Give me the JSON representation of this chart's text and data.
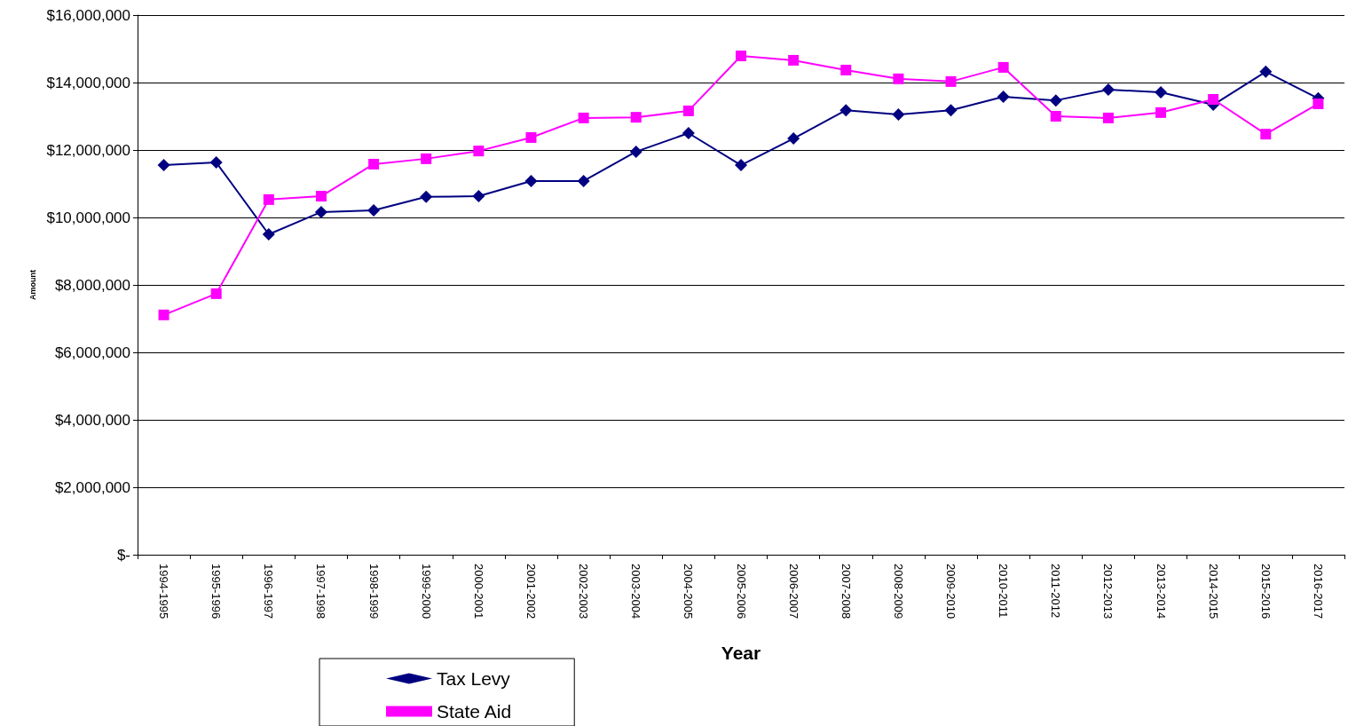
{
  "chart_data": {
    "type": "line",
    "xlabel": "Year",
    "ylabel": "Amount",
    "categories": [
      "1994-1995",
      "1995-1996",
      "1996-1997",
      "1997-1998",
      "1998-1999",
      "1999-2000",
      "2000-2001",
      "2001-2002",
      "2002-2003",
      "2003-2004",
      "2004-2005",
      "2005-2006",
      "2006-2007",
      "2007-2008",
      "2008-2009",
      "2009-2010",
      "2010-2011",
      "2011-2012",
      "2012-2013",
      "2013-2014",
      "2014-2015",
      "2015-2016",
      "2016-2017"
    ],
    "series": [
      {
        "name": "Tax Levy",
        "color": "#000080",
        "marker": "diamond",
        "values": [
          11550000,
          11630000,
          9500000,
          10160000,
          10210000,
          10610000,
          10630000,
          11080000,
          11080000,
          11950000,
          12500000,
          11550000,
          12340000,
          13180000,
          13050000,
          13180000,
          13580000,
          13470000,
          13790000,
          13710000,
          13340000,
          14320000,
          13530000
        ]
      },
      {
        "name": "State Aid",
        "color": "#ff00ff",
        "marker": "square",
        "values": [
          7110000,
          7740000,
          10530000,
          10630000,
          11580000,
          11740000,
          11970000,
          12370000,
          12950000,
          12970000,
          13160000,
          14790000,
          14660000,
          14370000,
          14110000,
          14030000,
          14450000,
          13000000,
          12950000,
          13110000,
          13500000,
          12470000,
          13370000
        ]
      }
    ],
    "ylim": [
      0,
      16000000
    ],
    "yticks": [
      {
        "value": 0,
        "label": "$-"
      },
      {
        "value": 2000000,
        "label": "$2,000,000"
      },
      {
        "value": 4000000,
        "label": "$4,000,000"
      },
      {
        "value": 6000000,
        "label": "$6,000,000"
      },
      {
        "value": 8000000,
        "label": "$8,000,000"
      },
      {
        "value": 10000000,
        "label": "$10,000,000"
      },
      {
        "value": 12000000,
        "label": "$12,000,000"
      },
      {
        "value": 14000000,
        "label": "$14,000,000"
      },
      {
        "value": 16000000,
        "label": "$16,000,000"
      }
    ],
    "grid": "y",
    "legend": "bottom",
    "line_style": "solid"
  }
}
